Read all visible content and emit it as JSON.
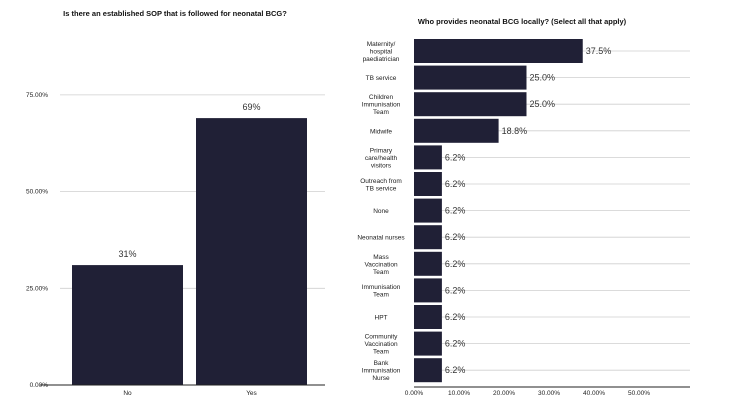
{
  "chart_data": [
    {
      "type": "bar",
      "title": "Is there an established SOP that is followed for neonatal BCG?",
      "categories": [
        "No",
        "Yes"
      ],
      "values": [
        31,
        69
      ],
      "data_labels": [
        "31%",
        "69%"
      ],
      "ylim": [
        0,
        75
      ],
      "yticks": [
        "0.00%",
        "25.00%",
        "50.00%",
        "75.00%"
      ],
      "ytick_values": [
        0,
        25,
        50,
        75
      ],
      "grid": true,
      "bar_color": "#202036"
    },
    {
      "type": "bar",
      "orientation": "horizontal",
      "title": "Who provides neonatal BCG locally? (Select all that apply)",
      "categories": [
        [
          "Maternity/",
          "hospital",
          "paediatrician"
        ],
        [
          "TB service"
        ],
        [
          "Children",
          "Immunisation",
          "Team"
        ],
        [
          "Midwife"
        ],
        [
          "Primary",
          "care/health",
          "visitors"
        ],
        [
          "Outreach from",
          "TB service"
        ],
        [
          "None"
        ],
        [
          "Neonatal nurses"
        ],
        [
          "Mass",
          "Vaccination",
          "Team"
        ],
        [
          "Immunisation",
          "Team"
        ],
        [
          "HPT"
        ],
        [
          "Community",
          "Vaccination",
          "Team"
        ],
        [
          "Bank",
          "Immunisation",
          "Nurse"
        ]
      ],
      "values": [
        37.5,
        25.0,
        25.0,
        18.8,
        6.2,
        6.2,
        6.2,
        6.2,
        6.2,
        6.2,
        6.2,
        6.2,
        6.2
      ],
      "data_labels": [
        "37.5%",
        "25.0%",
        "25.0%",
        "18.8%",
        "6.2%",
        "6.2%",
        "6.2%",
        "6.2%",
        "6.2%",
        "6.2%",
        "6.2%",
        "6.2%",
        "6.2%"
      ],
      "xlim": [
        0,
        60
      ],
      "xticks": [
        "0.00%",
        "10.00%",
        "20.00%",
        "30.00%",
        "40.00%",
        "50.00%"
      ],
      "xtick_values": [
        0,
        10,
        20,
        30,
        40,
        50
      ],
      "bar_color": "#202036"
    }
  ]
}
